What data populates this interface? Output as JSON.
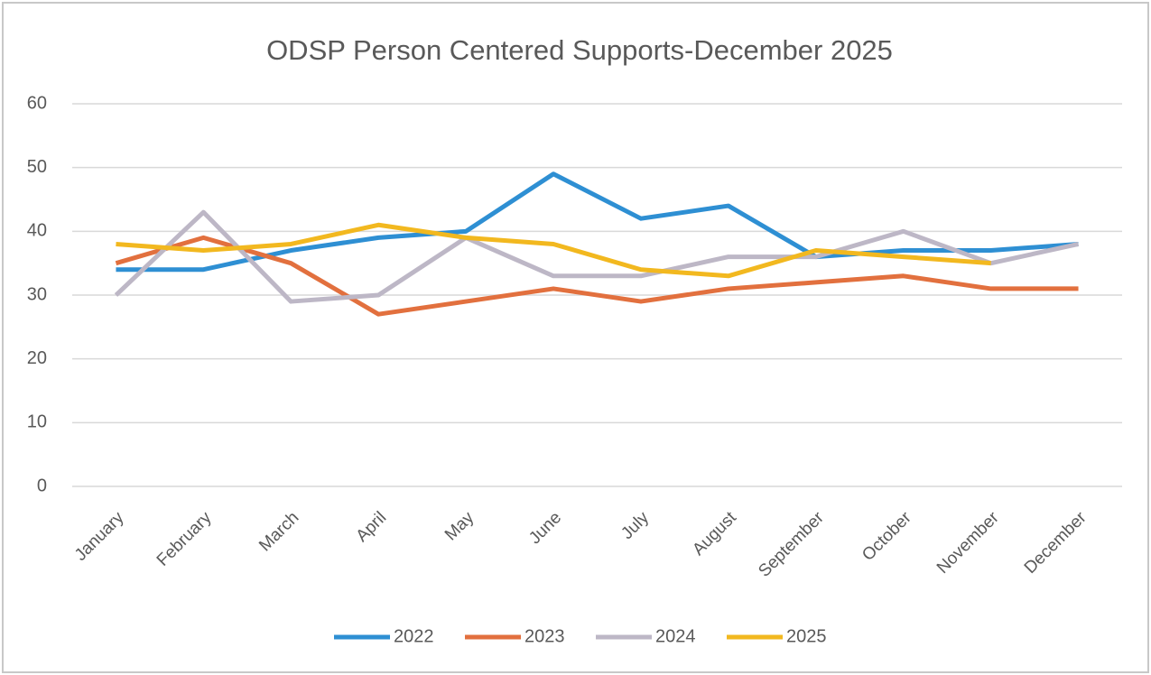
{
  "chart_data": {
    "type": "line",
    "title": "ODSP Person Centered Supports-December 2025",
    "categories": [
      "January",
      "February",
      "March",
      "April",
      "May",
      "June",
      "July",
      "August",
      "September",
      "October",
      "November",
      "December"
    ],
    "series": [
      {
        "name": "2022",
        "color": "#2e8fd3",
        "values": [
          34,
          34,
          37,
          39,
          40,
          49,
          42,
          44,
          36,
          37,
          37,
          38
        ]
      },
      {
        "name": "2023",
        "color": "#e2703e",
        "values": [
          35,
          39,
          35,
          27,
          29,
          31,
          29,
          31,
          32,
          33,
          31,
          31
        ]
      },
      {
        "name": "2024",
        "color": "#bdb7c6",
        "values": [
          30,
          43,
          29,
          30,
          39,
          33,
          33,
          36,
          36,
          40,
          35,
          38
        ]
      },
      {
        "name": "2025",
        "color": "#f2b81f",
        "values": [
          38,
          37,
          38,
          41,
          39,
          38,
          34,
          33,
          37,
          36,
          35,
          null
        ]
      }
    ],
    "ylim": [
      0,
      60
    ],
    "yticks": [
      0,
      10,
      20,
      30,
      40,
      50,
      60
    ],
    "grid": true,
    "legend": "bottom"
  }
}
